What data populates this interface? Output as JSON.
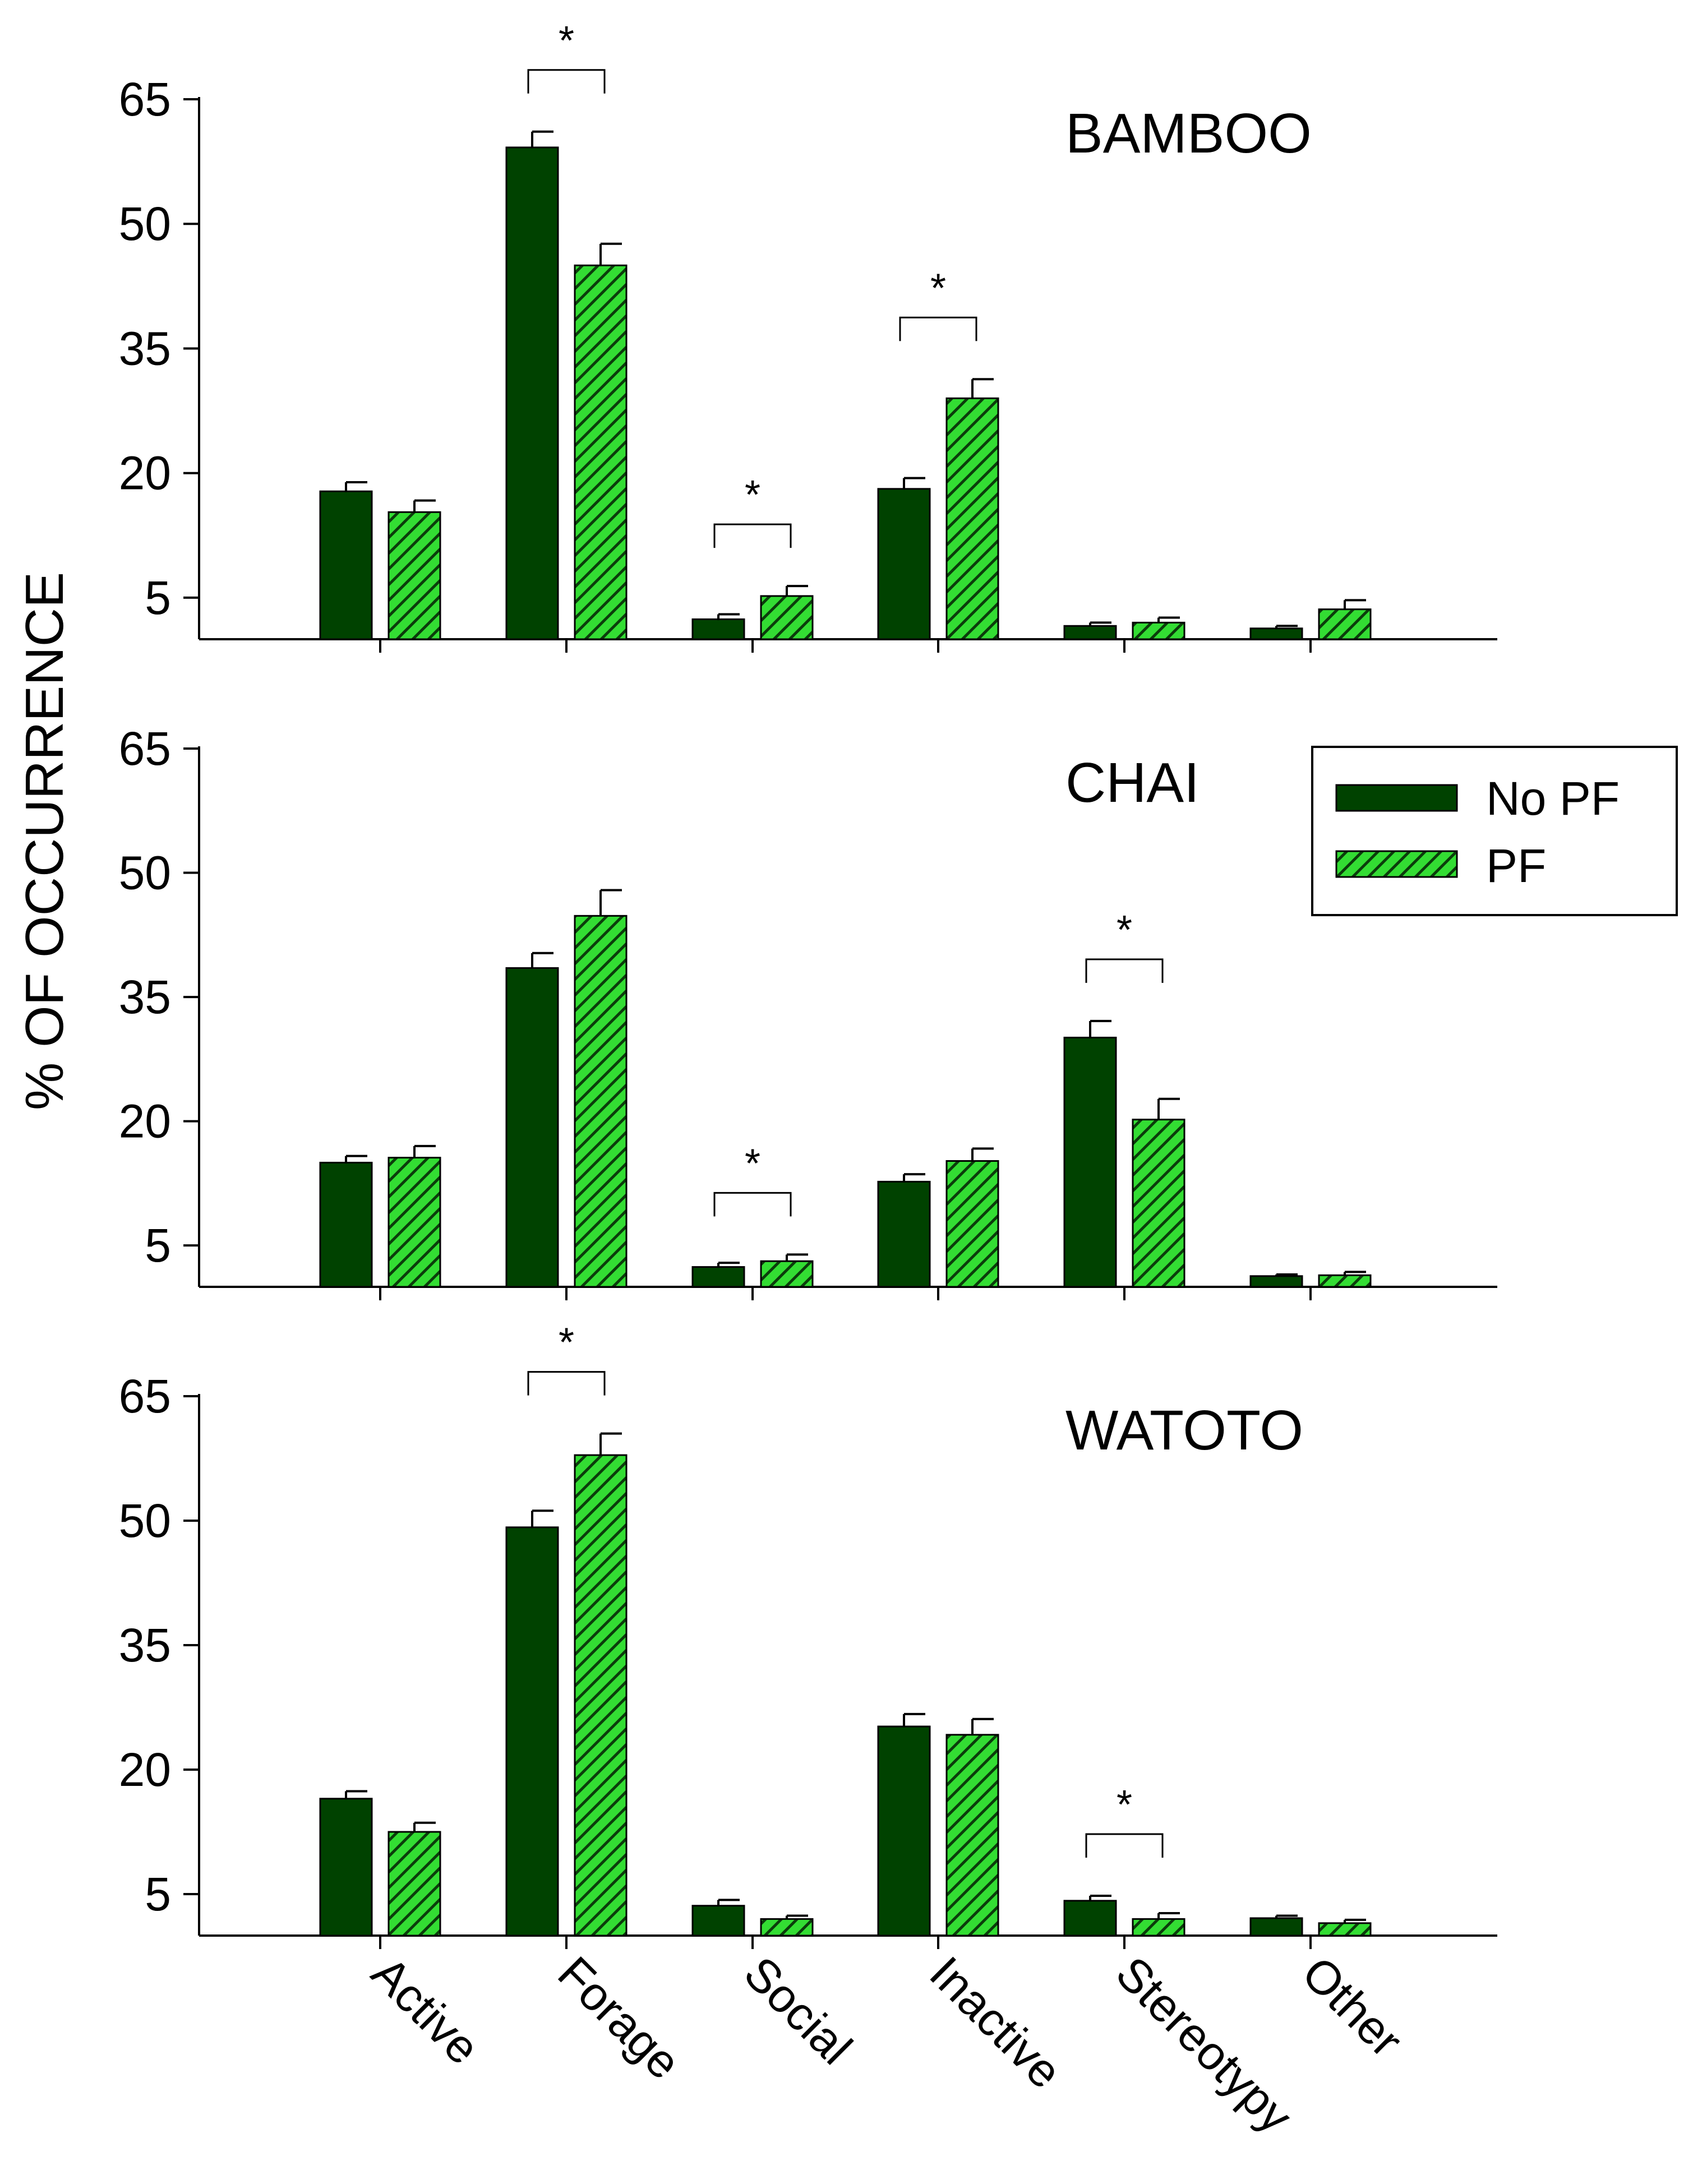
{
  "chart_data": {
    "type": "bar",
    "ylabel": "% OF OCCURRENCE",
    "categories": [
      "Active",
      "Forage",
      "Social",
      "Inactive",
      "Stereotypy",
      "Other"
    ],
    "yticks": [
      5,
      20,
      35,
      50,
      65
    ],
    "ylim": [
      0,
      65
    ],
    "legend": {
      "position": "right",
      "entries": [
        "No PF",
        "PF"
      ]
    },
    "colors": {
      "no_pf": "#004200",
      "pf": "#33dd33",
      "hatch": "#0b3d0b"
    },
    "panels": [
      {
        "title": "BAMBOO",
        "series": [
          {
            "name": "No PF",
            "values": [
              17.8,
              59.2,
              2.4,
              18.1,
              1.6,
              1.3
            ],
            "errors": [
              1.1,
              1.9,
              0.6,
              1.3,
              0.4,
              0.3
            ]
          },
          {
            "name": "PF",
            "values": [
              15.3,
              45.0,
              5.2,
              29.0,
              2.0,
              3.6
            ],
            "errors": [
              1.4,
              2.6,
              1.2,
              2.3,
              0.6,
              1.1
            ]
          }
        ],
        "significance": [
          {
            "category": "Forage",
            "label": "*"
          },
          {
            "category": "Social",
            "label": "*"
          },
          {
            "category": "Inactive",
            "label": "*"
          }
        ]
      },
      {
        "title": "CHAI",
        "series": [
          {
            "name": "No PF",
            "values": [
              15.0,
              38.5,
              2.4,
              12.7,
              30.1,
              1.3
            ],
            "errors": [
              0.8,
              1.8,
              0.5,
              0.9,
              2.0,
              0.2
            ]
          },
          {
            "name": "PF",
            "values": [
              15.6,
              44.8,
              3.1,
              15.2,
              20.2,
              1.4
            ],
            "errors": [
              1.4,
              3.1,
              0.8,
              1.5,
              2.5,
              0.4
            ]
          }
        ],
        "significance": [
          {
            "category": "Social",
            "label": "*"
          },
          {
            "category": "Stereotypy",
            "label": "*"
          }
        ]
      },
      {
        "title": "WATOTO",
        "series": [
          {
            "name": "No PF",
            "values": [
              16.5,
              49.2,
              3.6,
              25.2,
              4.2,
              2.1
            ],
            "errors": [
              0.9,
              2.0,
              0.7,
              1.5,
              0.6,
              0.3
            ]
          },
          {
            "name": "PF",
            "values": [
              12.5,
              57.9,
              2.0,
              24.2,
              2.0,
              1.5
            ],
            "errors": [
              1.1,
              2.6,
              0.4,
              1.9,
              0.7,
              0.4
            ]
          }
        ],
        "significance": [
          {
            "category": "Forage",
            "label": "*"
          },
          {
            "category": "Stereotypy",
            "label": "*"
          }
        ]
      }
    ]
  }
}
